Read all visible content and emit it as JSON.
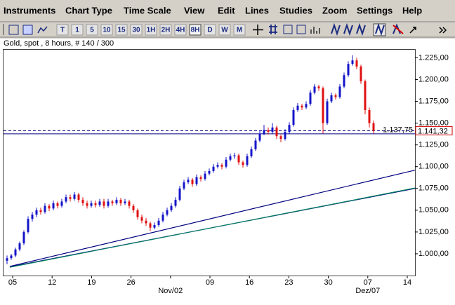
{
  "menu": [
    "Instruments",
    "Chart Type",
    "Time Scale",
    "View",
    "Edit",
    "Lines",
    "Studies",
    "Zoom",
    "Settings",
    "Help"
  ],
  "toolbar": {
    "buttons": [
      "T",
      "1",
      "5",
      "10",
      "15",
      "30",
      "1H",
      "2H",
      "4H",
      "8H",
      "D",
      "W",
      "M"
    ],
    "pressed": "8H"
  },
  "chart_data": {
    "type": "candlestick",
    "title": "Gold, spot , 8 hours, # 140 / 300",
    "ylim": [
      975,
      1235
    ],
    "yticks": [
      {
        "value": 1000,
        "label": "1.000,00"
      },
      {
        "value": 1025,
        "label": "1.025,00"
      },
      {
        "value": 1050,
        "label": "1.050,00"
      },
      {
        "value": 1075,
        "label": "1.075,00"
      },
      {
        "value": 1100,
        "label": "1.100,00"
      },
      {
        "value": 1125,
        "label": "1.125,00"
      },
      {
        "value": 1150,
        "label": "1.150,00"
      },
      {
        "value": 1175,
        "label": "1.175,00"
      },
      {
        "value": 1200,
        "label": "1.200,00"
      },
      {
        "value": 1225,
        "label": "1.225,00"
      }
    ],
    "x_labels": [
      "05",
      "12",
      "19",
      "26",
      null,
      "09",
      "16",
      "23",
      "30",
      "07",
      "14"
    ],
    "x_sublabels": [
      null,
      null,
      null,
      null,
      "Nov/02",
      null,
      null,
      null,
      null,
      "Dez/07",
      null
    ],
    "up_color": "#1414c8",
    "down_color": "#e01010",
    "candles": [
      [
        992,
        998,
        988,
        995
      ],
      [
        995,
        1000,
        993,
        998
      ],
      [
        998,
        1007,
        996,
        1005
      ],
      [
        1005,
        1014,
        1003,
        1012
      ],
      [
        1012,
        1027,
        1010,
        1025
      ],
      [
        1025,
        1043,
        1023,
        1040
      ],
      [
        1040,
        1048,
        1037,
        1045
      ],
      [
        1045,
        1053,
        1042,
        1050
      ],
      [
        1050,
        1053,
        1045,
        1048
      ],
      [
        1048,
        1058,
        1046,
        1055
      ],
      [
        1055,
        1057,
        1049,
        1052
      ],
      [
        1052,
        1061,
        1050,
        1058
      ],
      [
        1058,
        1060,
        1052,
        1055
      ],
      [
        1055,
        1063,
        1053,
        1060
      ],
      [
        1060,
        1068,
        1058,
        1065
      ],
      [
        1065,
        1068,
        1060,
        1063
      ],
      [
        1063,
        1071,
        1061,
        1068
      ],
      [
        1068,
        1070,
        1059,
        1062
      ],
      [
        1062,
        1065,
        1055,
        1058
      ],
      [
        1058,
        1061,
        1052,
        1055
      ],
      [
        1055,
        1061,
        1053,
        1058
      ],
      [
        1058,
        1061,
        1053,
        1056
      ],
      [
        1056,
        1063,
        1054,
        1060
      ],
      [
        1060,
        1063,
        1052,
        1055
      ],
      [
        1055,
        1063,
        1053,
        1060
      ],
      [
        1060,
        1062,
        1055,
        1058
      ],
      [
        1058,
        1065,
        1056,
        1062
      ],
      [
        1062,
        1064,
        1055,
        1058
      ],
      [
        1058,
        1063,
        1056,
        1060
      ],
      [
        1060,
        1062,
        1052,
        1055
      ],
      [
        1055,
        1057,
        1047,
        1050
      ],
      [
        1050,
        1052,
        1039,
        1042
      ],
      [
        1042,
        1045,
        1035,
        1038
      ],
      [
        1038,
        1041,
        1032,
        1035
      ],
      [
        1035,
        1037,
        1026,
        1030
      ],
      [
        1030,
        1036,
        1028,
        1033
      ],
      [
        1033,
        1041,
        1031,
        1038
      ],
      [
        1038,
        1048,
        1036,
        1045
      ],
      [
        1045,
        1053,
        1043,
        1050
      ],
      [
        1050,
        1058,
        1048,
        1055
      ],
      [
        1055,
        1065,
        1053,
        1062
      ],
      [
        1062,
        1078,
        1060,
        1075
      ],
      [
        1075,
        1085,
        1073,
        1082
      ],
      [
        1082,
        1088,
        1080,
        1085
      ],
      [
        1085,
        1087,
        1077,
        1080
      ],
      [
        1080,
        1091,
        1078,
        1088
      ],
      [
        1088,
        1090,
        1083,
        1086
      ],
      [
        1086,
        1095,
        1084,
        1092
      ],
      [
        1092,
        1098,
        1090,
        1095
      ],
      [
        1095,
        1103,
        1093,
        1100
      ],
      [
        1100,
        1105,
        1098,
        1102
      ],
      [
        1102,
        1104,
        1097,
        1100
      ],
      [
        1100,
        1111,
        1098,
        1108
      ],
      [
        1108,
        1115,
        1106,
        1112
      ],
      [
        1112,
        1116,
        1109,
        1113
      ],
      [
        1113,
        1115,
        1102,
        1105
      ],
      [
        1105,
        1107,
        1099,
        1102
      ],
      [
        1102,
        1115,
        1100,
        1112
      ],
      [
        1112,
        1123,
        1110,
        1120
      ],
      [
        1120,
        1133,
        1118,
        1130
      ],
      [
        1130,
        1141,
        1128,
        1138
      ],
      [
        1138,
        1148,
        1136,
        1142
      ],
      [
        1142,
        1145,
        1137,
        1140
      ],
      [
        1140,
        1150,
        1138,
        1145
      ],
      [
        1145,
        1147,
        1132,
        1135
      ],
      [
        1135,
        1137,
        1128,
        1132
      ],
      [
        1132,
        1143,
        1130,
        1140
      ],
      [
        1140,
        1151,
        1138,
        1148
      ],
      [
        1148,
        1168,
        1146,
        1165
      ],
      [
        1165,
        1173,
        1163,
        1170
      ],
      [
        1170,
        1172,
        1165,
        1168
      ],
      [
        1168,
        1175,
        1166,
        1172
      ],
      [
        1172,
        1188,
        1170,
        1185
      ],
      [
        1185,
        1195,
        1183,
        1192
      ],
      [
        1192,
        1194,
        1187,
        1190
      ],
      [
        1190,
        1192,
        1138,
        1150
      ],
      [
        1150,
        1178,
        1148,
        1175
      ],
      [
        1175,
        1185,
        1173,
        1182
      ],
      [
        1182,
        1184,
        1177,
        1180
      ],
      [
        1180,
        1195,
        1178,
        1192
      ],
      [
        1192,
        1208,
        1190,
        1205
      ],
      [
        1205,
        1221,
        1203,
        1218
      ],
      [
        1218,
        1228,
        1216,
        1222
      ],
      [
        1222,
        1225,
        1212,
        1215
      ],
      [
        1215,
        1217,
        1195,
        1198
      ],
      [
        1198,
        1200,
        1160,
        1165
      ],
      [
        1165,
        1168,
        1145,
        1150
      ],
      [
        1150,
        1153,
        1138,
        1141.32
      ]
    ],
    "levels": [
      {
        "value": 1137.75,
        "label": "1.137,75",
        "style": "solid",
        "color": "#000080"
      },
      {
        "value": 1141.32,
        "label": "1.141,32",
        "style": "dashed",
        "color": "#000080"
      }
    ],
    "trendlines": [
      {
        "start": 985.5,
        "end": 1096,
        "color": "#000080"
      },
      {
        "start": 985,
        "end": 1075,
        "color": "#000080"
      },
      {
        "start": 984.5,
        "end": 1075.5,
        "color": "#008060"
      }
    ]
  }
}
